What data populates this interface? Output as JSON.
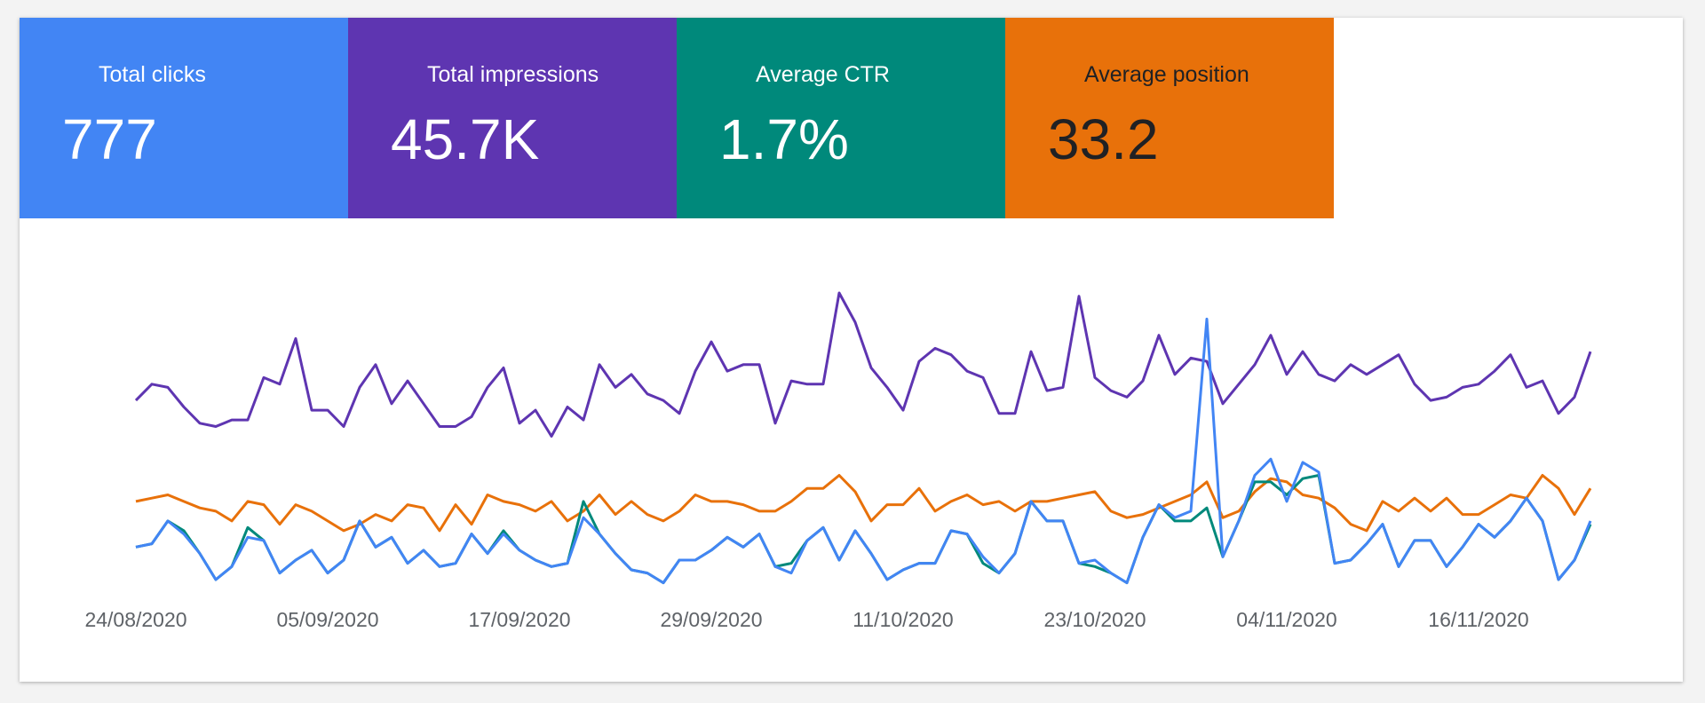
{
  "chart_data": {
    "type": "line",
    "categories": [
      "24/08/2020",
      null,
      null,
      null,
      null,
      null,
      null,
      null,
      null,
      null,
      null,
      null,
      "05/09/2020",
      null,
      null,
      null,
      null,
      null,
      null,
      null,
      null,
      null,
      null,
      null,
      "17/09/2020",
      null,
      null,
      null,
      null,
      null,
      null,
      null,
      null,
      null,
      null,
      null,
      "29/09/2020",
      null,
      null,
      null,
      null,
      null,
      null,
      null,
      null,
      null,
      null,
      null,
      "11/10/2020",
      null,
      null,
      null,
      null,
      null,
      null,
      null,
      null,
      null,
      null,
      null,
      "23/10/2020",
      null,
      null,
      null,
      null,
      null,
      null,
      null,
      null,
      null,
      null,
      null,
      "04/11/2020",
      null,
      null,
      null,
      null,
      null,
      null,
      null,
      null,
      null,
      null,
      null,
      "16/11/2020",
      null,
      null,
      null,
      null,
      null,
      null,
      null
    ],
    "ylim": [
      0,
      100
    ],
    "series": [
      {
        "name": "Total clicks",
        "total": "777",
        "color": "#4285f4",
        "values": [
          19,
          20,
          27,
          23,
          17,
          9,
          13,
          22,
          21,
          11,
          15,
          18,
          11,
          15,
          27,
          19,
          22,
          14,
          18,
          13,
          14,
          23,
          17,
          23,
          18,
          15,
          13,
          14,
          28,
          23,
          17,
          12,
          11,
          8,
          15,
          15,
          18,
          22,
          19,
          23,
          13,
          11,
          21,
          25,
          15,
          24,
          17,
          9,
          12,
          14,
          14,
          24,
          23,
          16,
          11,
          17,
          33,
          27,
          27,
          14,
          15,
          11,
          8,
          22,
          32,
          28,
          30,
          89,
          16,
          27,
          41,
          46,
          33,
          45,
          42,
          14,
          15,
          20,
          26,
          13,
          21,
          21,
          13,
          19,
          26,
          22,
          27,
          34,
          27,
          9,
          15,
          27
        ]
      },
      {
        "name": "Total impressions",
        "total": "45.7K",
        "color": "#5e35b1",
        "values": [
          64,
          69,
          68,
          62,
          57,
          56,
          58,
          58,
          71,
          69,
          83,
          61,
          61,
          56,
          68,
          75,
          63,
          70,
          63,
          56,
          56,
          59,
          68,
          74,
          57,
          61,
          53,
          62,
          58,
          75,
          68,
          72,
          66,
          64,
          60,
          73,
          82,
          73,
          75,
          75,
          57,
          70,
          69,
          69,
          97,
          88,
          74,
          68,
          61,
          76,
          80,
          78,
          73,
          71,
          60,
          60,
          79,
          67,
          68,
          96,
          71,
          67,
          65,
          70,
          84,
          72,
          77,
          76,
          63,
          69,
          75,
          84,
          72,
          79,
          72,
          70,
          75,
          72,
          75,
          78,
          69,
          64,
          65,
          68,
          69,
          73,
          78,
          68,
          70,
          60,
          65,
          79
        ]
      },
      {
        "name": "Average CTR",
        "total": "1.7%",
        "color": "#00897b",
        "values": [
          19,
          20,
          27,
          24,
          17,
          9,
          13,
          25,
          21,
          11,
          15,
          18,
          11,
          15,
          27,
          19,
          22,
          14,
          18,
          13,
          14,
          23,
          17,
          24,
          18,
          15,
          13,
          14,
          33,
          23,
          17,
          12,
          11,
          8,
          15,
          15,
          18,
          22,
          19,
          23,
          13,
          14,
          21,
          25,
          15,
          24,
          17,
          9,
          12,
          14,
          14,
          24,
          23,
          14,
          11,
          17,
          33,
          27,
          27,
          14,
          13,
          11,
          8,
          22,
          32,
          27,
          27,
          31,
          16,
          27,
          39,
          39,
          35,
          40,
          41,
          14,
          15,
          20,
          26,
          13,
          21,
          21,
          13,
          19,
          26,
          22,
          27,
          34,
          27,
          9,
          15,
          26
        ]
      },
      {
        "name": "Average position",
        "total": "33.2",
        "color": "#e8710a",
        "values": [
          33,
          34,
          35,
          33,
          31,
          30,
          27,
          33,
          32,
          26,
          32,
          30,
          27,
          24,
          26,
          29,
          27,
          32,
          31,
          24,
          32,
          26,
          35,
          33,
          32,
          30,
          33,
          27,
          30,
          35,
          29,
          33,
          29,
          27,
          30,
          35,
          33,
          33,
          32,
          30,
          30,
          33,
          37,
          37,
          41,
          36,
          27,
          32,
          32,
          37,
          30,
          33,
          35,
          32,
          33,
          30,
          33,
          33,
          34,
          35,
          36,
          30,
          28,
          29,
          31,
          33,
          35,
          39,
          28,
          30,
          36,
          40,
          39,
          35,
          34,
          31,
          26,
          24,
          33,
          30,
          34,
          30,
          34,
          29,
          29,
          32,
          35,
          34,
          41,
          37,
          29,
          37
        ]
      }
    ]
  }
}
